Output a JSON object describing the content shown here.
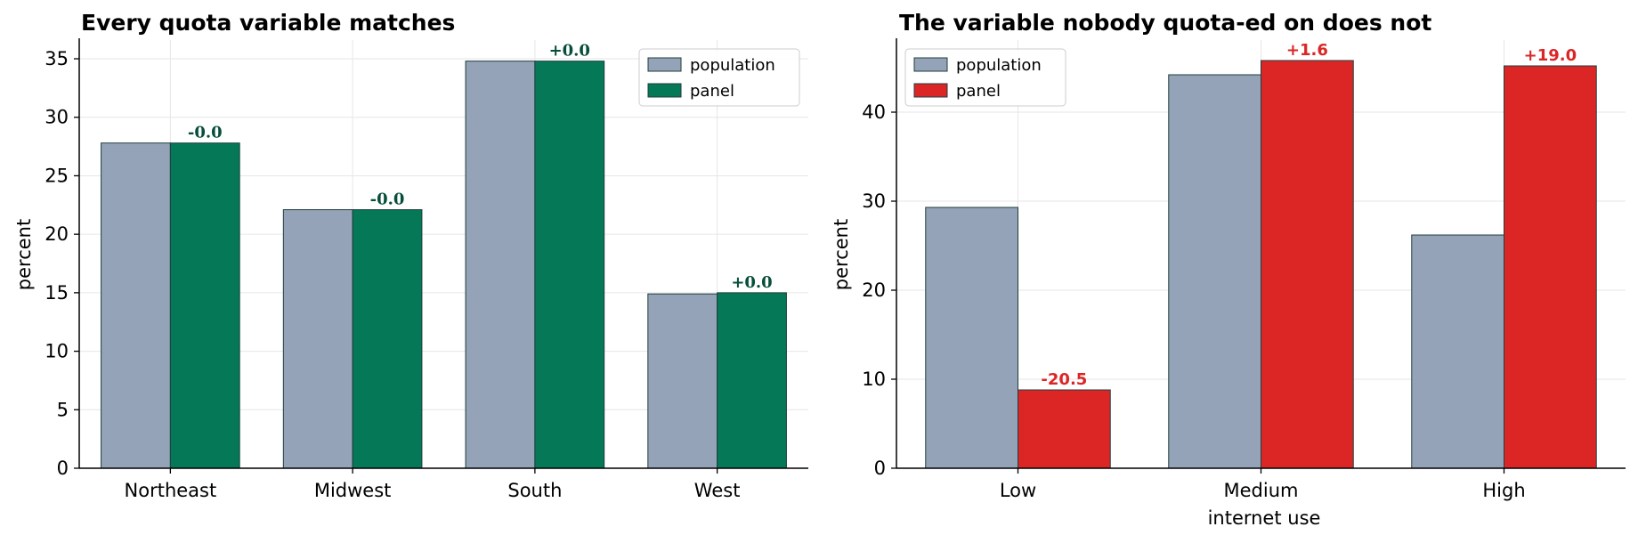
{
  "chart_data": [
    {
      "type": "bar",
      "title": "Every quota variable matches",
      "xlabel": "",
      "ylabel": "percent",
      "categories": [
        "Northeast",
        "Midwest",
        "South",
        "West"
      ],
      "series": [
        {
          "name": "population",
          "values": [
            27.8,
            22.1,
            34.8,
            14.9
          ],
          "color": "#94a3b8"
        },
        {
          "name": "panel",
          "values": [
            27.8,
            22.1,
            34.8,
            15.0
          ],
          "color": "#047857"
        }
      ],
      "diff_labels": [
        "-0.0",
        "-0.0",
        "+0.0",
        "+0.0"
      ],
      "diff_color": "#064e3b",
      "yticks": [
        "0",
        "5",
        "10",
        "15",
        "20",
        "25",
        "30",
        "35"
      ],
      "ylim": [
        0,
        36.6
      ],
      "grid": true,
      "legend_position": "top-right"
    },
    {
      "type": "bar",
      "title": "The variable nobody quota-ed on does not",
      "xlabel": "internet use",
      "ylabel": "percent",
      "categories": [
        "Low",
        "Medium",
        "High"
      ],
      "series": [
        {
          "name": "population",
          "values": [
            29.3,
            44.2,
            26.2
          ],
          "color": "#94a3b8"
        },
        {
          "name": "panel",
          "values": [
            8.8,
            45.8,
            45.2
          ],
          "color": "#dc2626"
        }
      ],
      "diff_labels": [
        "-20.5",
        "+1.6",
        "+19.0"
      ],
      "diff_color": "#dc2626",
      "yticks": [
        "0",
        "10",
        "20",
        "30",
        "40"
      ],
      "ylim": [
        0,
        48.1
      ],
      "grid": true,
      "legend_position": "top-left"
    }
  ]
}
